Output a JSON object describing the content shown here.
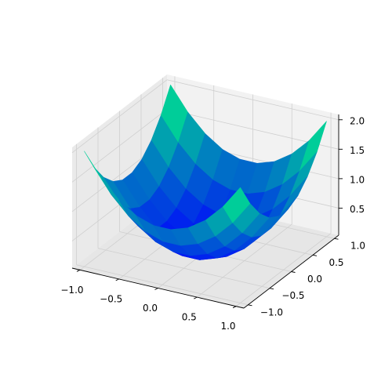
{
  "chart_data": {
    "type": "surface3d",
    "function": "z = x^2 + y^2",
    "x": [
      -1.0,
      -0.778,
      -0.556,
      -0.333,
      -0.111,
      0.111,
      0.333,
      0.556,
      0.778,
      1.0
    ],
    "y": [
      -1.0,
      -0.778,
      -0.556,
      -0.333,
      -0.111,
      0.111,
      0.333,
      0.556,
      0.778,
      1.0
    ],
    "xlim": [
      -1.1,
      1.1
    ],
    "ylim": [
      -1.1,
      1.1
    ],
    "zlim": [
      0.04,
      2.09
    ],
    "x_ticks": [
      "−1.0",
      "−0.5",
      "0.0",
      "0.5",
      "1.0"
    ],
    "x_tick_values": [
      -1.0,
      -0.5,
      0.0,
      0.5,
      1.0
    ],
    "y_ticks": [
      "−1.0",
      "−0.5",
      "0.0",
      "0.5",
      "1.0"
    ],
    "y_tick_values": [
      -1.0,
      -0.5,
      0.0,
      0.5,
      1.0
    ],
    "z_ticks": [
      "0.5",
      "1.0",
      "1.5",
      "2.0"
    ],
    "z_tick_values": [
      0.5,
      1.0,
      1.5,
      2.0
    ],
    "colormap": "winter",
    "colormap_low": "#0000ff",
    "colormap_high": "#00ff80",
    "grid": true,
    "pane_color": "#f2f2f2"
  }
}
